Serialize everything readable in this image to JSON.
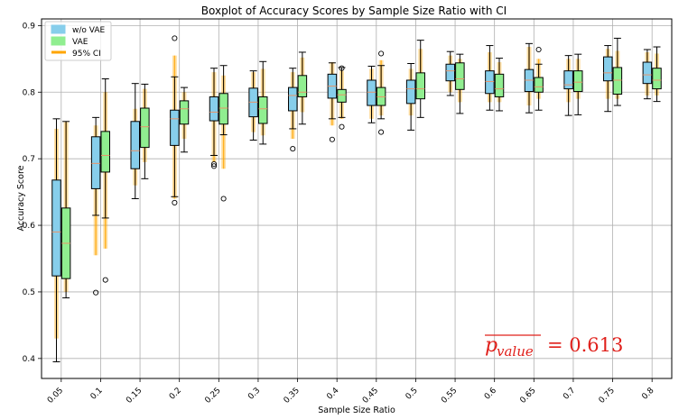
{
  "chart_data": {
    "type": "boxplot",
    "title": "Boxplot of Accuracy Scores by Sample Size Ratio with CI",
    "xlabel": "Sample Size Ratio",
    "ylabel": "Accuracy Score",
    "ylim": [
      0.37,
      0.91
    ],
    "yticks": [
      "0.4",
      "0.5",
      "0.6",
      "0.7",
      "0.8",
      "0.9"
    ],
    "grid": true,
    "legend_position": "top-left",
    "colors": {
      "wo_vae": "#87ceeb",
      "vae": "#90ee90",
      "ci": "#ffa500",
      "median": "#e8956a",
      "annotation": "#e0201b"
    },
    "annotation": {
      "symbol": "p",
      "subscript": "value",
      "value": "= 0.613"
    },
    "legend": [
      "w/o VAE",
      "VAE",
      "95% CI"
    ],
    "categories": [
      "0.05",
      "0.1",
      "0.15",
      "0.2",
      "0.25",
      "0.3",
      "0.35",
      "0.4",
      "0.45",
      "0.5",
      "0.55",
      "0.6",
      "0.65",
      "0.7",
      "0.75",
      "0.8"
    ],
    "series": [
      {
        "name": "w/o VAE",
        "boxes": [
          {
            "q1": 0.524,
            "median": 0.59,
            "q3": 0.668,
            "whislo": 0.395,
            "whishi": 0.76,
            "ci": [
              0.43,
              0.745
            ],
            "fliers": []
          },
          {
            "q1": 0.655,
            "median": 0.693,
            "q3": 0.733,
            "whislo": 0.615,
            "whishi": 0.762,
            "ci": [
              0.555,
              0.75
            ],
            "fliers": [
              0.499
            ]
          },
          {
            "q1": 0.685,
            "median": 0.712,
            "q3": 0.756,
            "whislo": 0.64,
            "whishi": 0.813,
            "ci": [
              0.66,
              0.775
            ],
            "fliers": []
          },
          {
            "q1": 0.72,
            "median": 0.76,
            "q3": 0.773,
            "whislo": 0.643,
            "whishi": 0.823,
            "ci": [
              0.64,
              0.855
            ],
            "fliers": [
              0.881,
              0.634
            ]
          },
          {
            "q1": 0.757,
            "median": 0.77,
            "q3": 0.793,
            "whislo": 0.705,
            "whishi": 0.836,
            "ci": [
              0.695,
              0.83
            ],
            "fliers": [
              0.692,
              0.689
            ]
          },
          {
            "q1": 0.763,
            "median": 0.785,
            "q3": 0.806,
            "whislo": 0.728,
            "whishi": 0.832,
            "ci": [
              0.74,
              0.83
            ],
            "fliers": []
          },
          {
            "q1": 0.772,
            "median": 0.795,
            "q3": 0.807,
            "whislo": 0.745,
            "whishi": 0.836,
            "ci": [
              0.73,
              0.83
            ],
            "fliers": [
              0.715
            ]
          },
          {
            "q1": 0.791,
            "median": 0.809,
            "q3": 0.827,
            "whislo": 0.76,
            "whishi": 0.844,
            "ci": [
              0.75,
              0.845
            ],
            "fliers": [
              0.729
            ]
          },
          {
            "q1": 0.78,
            "median": 0.8,
            "q3": 0.818,
            "whislo": 0.754,
            "whishi": 0.839,
            "ci": [
              0.76,
              0.835
            ],
            "fliers": []
          },
          {
            "q1": 0.783,
            "median": 0.805,
            "q3": 0.818,
            "whislo": 0.743,
            "whishi": 0.843,
            "ci": [
              0.765,
              0.835
            ],
            "fliers": []
          },
          {
            "q1": 0.817,
            "median": 0.832,
            "q3": 0.842,
            "whislo": 0.795,
            "whishi": 0.861,
            "ci": [
              0.8,
              0.855
            ],
            "fliers": []
          },
          {
            "q1": 0.798,
            "median": 0.816,
            "q3": 0.832,
            "whislo": 0.773,
            "whishi": 0.87,
            "ci": [
              0.785,
              0.86
            ],
            "fliers": []
          },
          {
            "q1": 0.801,
            "median": 0.818,
            "q3": 0.834,
            "whislo": 0.769,
            "whishi": 0.873,
            "ci": [
              0.78,
              0.868
            ],
            "fliers": []
          },
          {
            "q1": 0.805,
            "median": 0.811,
            "q3": 0.832,
            "whislo": 0.765,
            "whishi": 0.855,
            "ci": [
              0.785,
              0.85
            ],
            "fliers": []
          },
          {
            "q1": 0.817,
            "median": 0.829,
            "q3": 0.853,
            "whislo": 0.771,
            "whishi": 0.87,
            "ci": [
              0.79,
              0.865
            ],
            "fliers": []
          },
          {
            "q1": 0.813,
            "median": 0.826,
            "q3": 0.845,
            "whislo": 0.79,
            "whishi": 0.864,
            "ci": [
              0.795,
              0.86
            ],
            "fliers": []
          }
        ]
      },
      {
        "name": "VAE",
        "boxes": [
          {
            "q1": 0.52,
            "median": 0.573,
            "q3": 0.626,
            "whislo": 0.491,
            "whishi": 0.756,
            "ci": [
              0.5,
              0.755
            ],
            "fliers": []
          },
          {
            "q1": 0.68,
            "median": 0.705,
            "q3": 0.741,
            "whislo": 0.611,
            "whishi": 0.82,
            "ci": [
              0.565,
              0.8
            ],
            "fliers": [
              0.518
            ]
          },
          {
            "q1": 0.717,
            "median": 0.748,
            "q3": 0.776,
            "whislo": 0.67,
            "whishi": 0.812,
            "ci": [
              0.695,
              0.805
            ],
            "fliers": []
          },
          {
            "q1": 0.752,
            "median": 0.775,
            "q3": 0.787,
            "whislo": 0.71,
            "whishi": 0.807,
            "ci": [
              0.73,
              0.8
            ],
            "fliers": []
          },
          {
            "q1": 0.752,
            "median": 0.776,
            "q3": 0.798,
            "whislo": 0.736,
            "whishi": 0.84,
            "ci": [
              0.685,
              0.825
            ],
            "fliers": [
              0.64
            ]
          },
          {
            "q1": 0.753,
            "median": 0.775,
            "q3": 0.793,
            "whislo": 0.722,
            "whishi": 0.846,
            "ci": [
              0.735,
              0.835
            ],
            "fliers": []
          },
          {
            "q1": 0.793,
            "median": 0.8,
            "q3": 0.825,
            "whislo": 0.752,
            "whishi": 0.86,
            "ci": [
              0.77,
              0.852
            ],
            "fliers": []
          },
          {
            "q1": 0.785,
            "median": 0.796,
            "q3": 0.804,
            "whislo": 0.762,
            "whishi": 0.837,
            "ci": [
              0.76,
              0.832
            ],
            "fliers": [
              0.836,
              0.748
            ]
          },
          {
            "q1": 0.78,
            "median": 0.793,
            "q3": 0.807,
            "whislo": 0.76,
            "whishi": 0.84,
            "ci": [
              0.765,
              0.848
            ],
            "fliers": [
              0.858,
              0.74
            ]
          },
          {
            "q1": 0.79,
            "median": 0.805,
            "q3": 0.829,
            "whislo": 0.762,
            "whishi": 0.878,
            "ci": [
              0.79,
              0.865
            ],
            "fliers": []
          },
          {
            "q1": 0.804,
            "median": 0.82,
            "q3": 0.844,
            "whislo": 0.768,
            "whishi": 0.857,
            "ci": [
              0.785,
              0.85
            ],
            "fliers": []
          },
          {
            "q1": 0.793,
            "median": 0.805,
            "q3": 0.827,
            "whislo": 0.772,
            "whishi": 0.851,
            "ci": [
              0.785,
              0.845
            ],
            "fliers": []
          },
          {
            "q1": 0.8,
            "median": 0.808,
            "q3": 0.822,
            "whislo": 0.773,
            "whishi": 0.842,
            "ci": [
              0.79,
              0.85
            ],
            "fliers": [
              0.864
            ]
          },
          {
            "q1": 0.801,
            "median": 0.815,
            "q3": 0.832,
            "whislo": 0.766,
            "whishi": 0.857,
            "ci": [
              0.79,
              0.85
            ],
            "fliers": []
          },
          {
            "q1": 0.797,
            "median": 0.818,
            "q3": 0.837,
            "whislo": 0.78,
            "whishi": 0.881,
            "ci": [
              0.79,
              0.862
            ],
            "fliers": []
          },
          {
            "q1": 0.805,
            "median": 0.818,
            "q3": 0.836,
            "whislo": 0.786,
            "whishi": 0.868,
            "ci": [
              0.795,
              0.858
            ],
            "fliers": []
          }
        ]
      }
    ]
  }
}
